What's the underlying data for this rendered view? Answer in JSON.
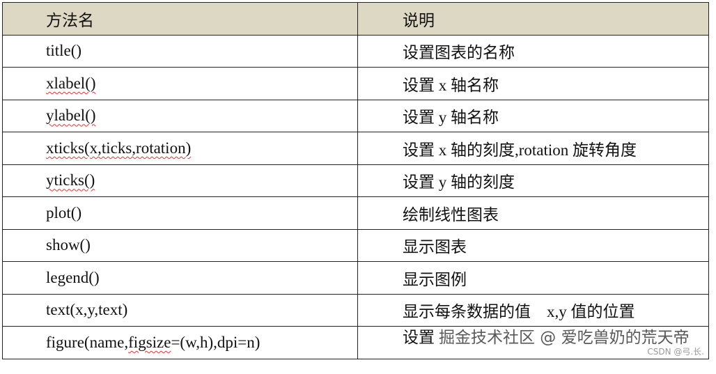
{
  "headers": {
    "method": "方法名",
    "description": "说明"
  },
  "rows": [
    {
      "method": "title()",
      "description": "设置图表的名称"
    },
    {
      "method": "xlabel()",
      "description": "设置 x 轴名称"
    },
    {
      "method": "ylabel()",
      "description": "设置 y 轴名称"
    },
    {
      "method": "xticks(x,ticks,rotation)",
      "description": "设置 x 轴的刻度,rotation 旋转角度"
    },
    {
      "method": "yticks()",
      "description": "设置 y 轴的刻度"
    },
    {
      "method": "plot()",
      "description": "绘制线性图表"
    },
    {
      "method": "show()",
      "description": "显示图表"
    },
    {
      "method": "legend()",
      "description": "显示图例"
    },
    {
      "method": "text(x,y,text)",
      "description": "显示每条数据的值　x,y 值的位置"
    },
    {
      "method": "figure(name,figsize=(w,h),dpi=n)",
      "description": "设置"
    }
  ],
  "watermark": {
    "juejin": "掘金技术社区 @ 爱吃兽奶的荒天帝",
    "csdn": "CSDN @弓.长."
  },
  "colors": {
    "header_bg": "#ddd8c4",
    "spellcheck_underline": "#dd3333"
  }
}
